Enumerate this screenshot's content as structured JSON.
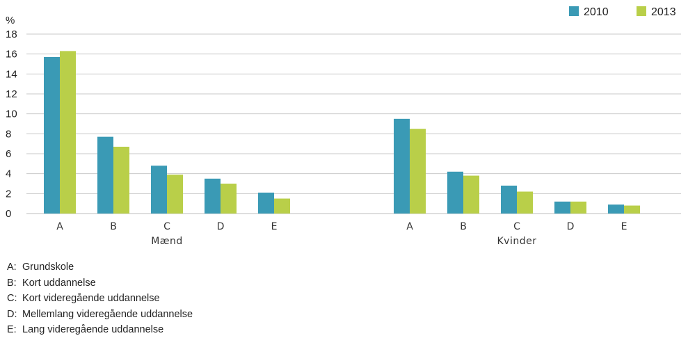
{
  "chart_data": {
    "type": "bar",
    "ylabel": "%",
    "ylim": [
      0,
      18
    ],
    "yticks": [
      0,
      2,
      4,
      6,
      8,
      10,
      12,
      14,
      16,
      18
    ],
    "grid": true,
    "legend_position": "top-right",
    "groups": [
      {
        "name": "Mænd",
        "categories": [
          "A",
          "B",
          "C",
          "D",
          "E"
        ],
        "series": [
          {
            "name": "2010",
            "values": [
              15.7,
              7.7,
              4.8,
              3.5,
              2.1
            ]
          },
          {
            "name": "2013",
            "values": [
              16.3,
              6.7,
              3.9,
              3.0,
              1.5
            ]
          }
        ]
      },
      {
        "name": "Kvinder",
        "categories": [
          "A",
          "B",
          "C",
          "D",
          "E"
        ],
        "series": [
          {
            "name": "2010",
            "values": [
              9.5,
              4.2,
              2.8,
              1.2,
              0.9
            ]
          },
          {
            "name": "2013",
            "values": [
              8.5,
              3.8,
              2.2,
              1.2,
              0.8
            ]
          }
        ]
      }
    ],
    "colors": {
      "2010": "#3a9ab5",
      "2013": "#b9cf49"
    }
  },
  "notes": [
    {
      "key": "A:",
      "text": "Grundskole"
    },
    {
      "key": "B:",
      "text": "Kort uddannelse"
    },
    {
      "key": "C:",
      "text": "Kort videregående uddannelse"
    },
    {
      "key": "D:",
      "text": "Mellemlang videregående uddannelse"
    },
    {
      "key": "E:",
      "text": "Lang videregående uddannelse"
    }
  ]
}
